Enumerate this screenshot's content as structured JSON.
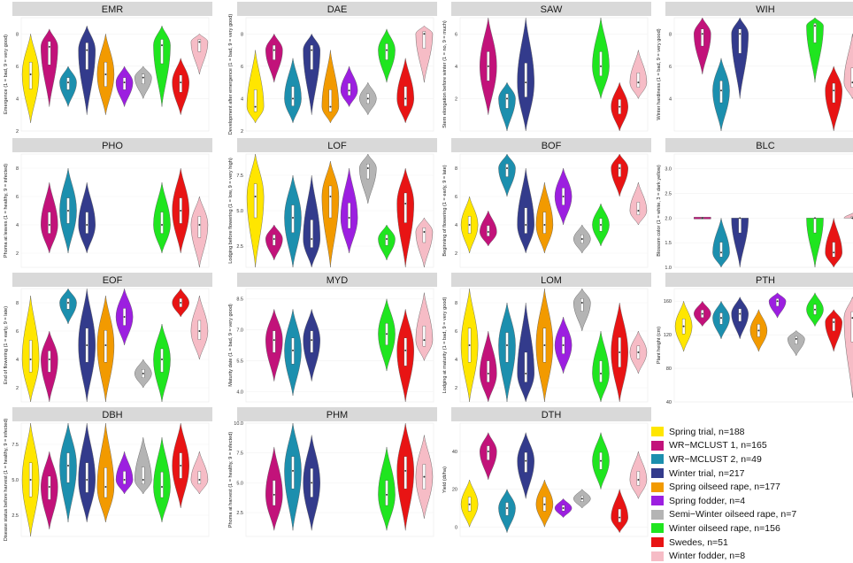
{
  "chart_data": {
    "type": "violin",
    "groups": [
      {
        "name": "Spring trial, n=188",
        "color": "#FFE600"
      },
      {
        "name": "WR−MCLUST 1, n=165",
        "color": "#C2127A"
      },
      {
        "name": "WR−MCLUST 2, n=49",
        "color": "#1C8FAE"
      },
      {
        "name": "Winter trial, n=217",
        "color": "#333B8C"
      },
      {
        "name": "Spring oilseed rape, n=177",
        "color": "#F29A00"
      },
      {
        "name": "Spring fodder, n=4",
        "color": "#9C1FE0"
      },
      {
        "name": "Semi−Winter oilseed rape, n=7",
        "color": "#B4B4B4"
      },
      {
        "name": "Winter oilseed rape, n=156",
        "color": "#1FE51F"
      },
      {
        "name": "Swedes, n=51",
        "color": "#E81414"
      },
      {
        "name": "Winter fodder, n=8",
        "color": "#F6BCC6"
      }
    ],
    "panels": [
      {
        "title": "EMR",
        "ylabel": "Emergence (1 = bad, 9 = very good)",
        "yticks": [
          "2",
          "4",
          "6",
          "8"
        ],
        "ylim": [
          2,
          9
        ],
        "violins": [
          [
            2.5,
            8,
            5.5,
            5.5
          ],
          [
            3.5,
            8.3,
            7.2,
            7.2
          ],
          [
            3.5,
            6,
            5,
            5
          ],
          [
            3,
            8.5,
            7,
            7
          ],
          [
            3,
            8,
            5.5,
            5.5
          ],
          [
            3.5,
            6,
            5,
            5
          ],
          [
            4,
            6,
            5.3,
            5.3
          ],
          [
            3.5,
            8.5,
            7.3,
            7.3
          ],
          [
            3,
            6.5,
            5,
            5
          ],
          [
            5.5,
            8,
            7.5,
            7.5
          ]
        ]
      },
      {
        "title": "DAE",
        "ylabel": "Development after emergence (1 = bad, 9 = very good)",
        "yticks": [
          "2",
          "4",
          "6",
          "8"
        ],
        "ylim": [
          2,
          9
        ],
        "violins": [
          [
            2.5,
            7,
            3.5,
            3.5
          ],
          [
            5,
            8,
            7,
            7
          ],
          [
            2.5,
            6.5,
            4,
            4
          ],
          [
            3,
            8,
            7,
            7
          ],
          [
            2.5,
            7,
            3.5,
            3.5
          ],
          [
            3.5,
            6,
            4.5,
            4.5
          ],
          [
            3,
            5,
            4,
            4
          ],
          [
            5,
            8.3,
            7,
            7
          ],
          [
            2.5,
            6.5,
            4,
            4
          ],
          [
            5,
            8.5,
            8,
            8
          ]
        ]
      },
      {
        "title": "SAW",
        "ylabel": "Stem elongation before winter (1 = no, 9 = much)",
        "yticks": [
          "2",
          "4",
          "6"
        ],
        "ylim": [
          0,
          7
        ],
        "violins": null,
        "violins_sel": [
          [
            1,
            null
          ],
          [
            2,
            [
              1,
              7,
              4,
              4
            ]
          ],
          [
            3,
            [
              0,
              3,
              2,
              2
            ]
          ],
          [
            4,
            [
              0,
              7,
              3,
              3
            ]
          ],
          [
            8,
            [
              2,
              7,
              4,
              4
            ]
          ],
          [
            9,
            [
              0,
              3,
              1.5,
              1.5
            ]
          ],
          [
            10,
            [
              2,
              5,
              3,
              3
            ]
          ]
        ]
      },
      {
        "title": "WIH",
        "ylabel": "Winter hardiness (1 = bad, 9 = very good)",
        "yticks": [
          "4",
          "6",
          "8"
        ],
        "ylim": [
          2,
          9
        ],
        "violins_sel": [
          [
            2,
            [
              5.5,
              9,
              8,
              8
            ]
          ],
          [
            3,
            [
              2,
              6.5,
              4.5,
              4.5
            ]
          ],
          [
            4,
            [
              4,
              9,
              8,
              8
            ]
          ],
          [
            8,
            [
              5,
              9,
              8.5,
              8.5
            ]
          ],
          [
            9,
            [
              2,
              6,
              4.5,
              4.5
            ]
          ],
          [
            10,
            [
              4,
              8,
              5,
              5
            ]
          ]
        ]
      },
      {
        "title": "PHO",
        "ylabel": "Phoma at leaves (1 = healthy, 9 = infected)",
        "yticks": [
          "2",
          "4",
          "6",
          "8"
        ],
        "ylim": [
          1,
          9
        ],
        "violins_sel": [
          [
            2,
            [
              2,
              7,
              4,
              4
            ]
          ],
          [
            3,
            [
              2,
              8,
              5,
              5
            ]
          ],
          [
            4,
            [
              2,
              7,
              4,
              4
            ]
          ],
          [
            8,
            [
              2,
              7,
              4,
              4
            ]
          ],
          [
            9,
            [
              2,
              8,
              5,
              5
            ]
          ],
          [
            10,
            [
              1,
              6,
              4,
              4
            ]
          ]
        ]
      },
      {
        "title": "LOF",
        "ylabel": "Lodging before flowering (1 = low, 9 = very high)",
        "yticks": [
          "2.5",
          "5.0",
          "7.5"
        ],
        "ylim": [
          1,
          9
        ],
        "violins": [
          [
            1,
            9,
            6,
            6
          ],
          [
            1.5,
            4,
            3,
            3
          ],
          [
            1,
            7.5,
            4.5,
            4.5
          ],
          [
            1,
            7.5,
            3,
            3
          ],
          [
            1,
            8.5,
            6,
            6
          ],
          [
            2,
            8,
            4.5,
            4.5
          ],
          [
            5.5,
            9,
            8,
            8
          ],
          [
            1.5,
            4,
            3,
            3
          ],
          [
            1,
            8,
            5.5,
            5.5
          ],
          [
            1,
            4.5,
            3.5,
            3.5
          ]
        ]
      },
      {
        "title": "BOF",
        "ylabel": "Beginning of flowering (1 = early, 9 = late)",
        "yticks": [
          "2",
          "4",
          "6",
          "8"
        ],
        "ylim": [
          1,
          9
        ],
        "violins": [
          [
            2,
            6,
            4,
            4
          ],
          [
            2.5,
            5,
            3.5,
            3.5
          ],
          [
            6,
            9,
            8,
            8
          ],
          [
            2,
            8,
            4,
            4
          ],
          [
            2,
            7,
            4,
            4
          ],
          [
            4,
            8,
            6,
            6
          ],
          [
            2,
            4,
            3,
            3
          ],
          [
            2.5,
            5.5,
            4,
            4
          ],
          [
            6,
            9,
            8,
            8
          ],
          [
            4,
            7,
            5,
            5
          ]
        ]
      },
      {
        "title": "BLC",
        "ylabel": "Blossom color (1 = white, 3 = dark yellow)",
        "yticks": [
          "1.0",
          "1.5",
          "2.0",
          "2.5",
          "3.0"
        ],
        "ylim": [
          1,
          3.3
        ],
        "violins_sel": [
          [
            2,
            [
              2,
              2,
              2,
              2
            ]
          ],
          [
            3,
            [
              1,
              2,
              1.3,
              1.3
            ]
          ],
          [
            4,
            [
              1,
              2,
              2,
              2
            ]
          ],
          [
            8,
            [
              1,
              2,
              2,
              2
            ]
          ],
          [
            9,
            [
              1,
              2,
              1.3,
              1.3
            ]
          ],
          [
            10,
            [
              2,
              2.1,
              2,
              2
            ]
          ]
        ]
      },
      {
        "title": "EOF",
        "ylabel": "End of flowering (1 = early, 9 = late)",
        "yticks": [
          "2",
          "4",
          "6",
          "8"
        ],
        "ylim": [
          1,
          9
        ],
        "violins": [
          [
            1,
            8.5,
            4,
            4
          ],
          [
            1,
            6,
            4,
            4
          ],
          [
            6.5,
            9,
            8,
            8
          ],
          [
            1,
            9,
            5,
            5
          ],
          [
            1,
            8.5,
            5,
            5
          ],
          [
            5,
            9,
            7,
            7
          ],
          [
            2,
            4,
            3,
            3
          ],
          [
            1,
            6.5,
            4,
            4
          ],
          [
            7,
            9,
            8,
            8
          ],
          [
            4,
            8.5,
            6,
            6
          ]
        ]
      },
      {
        "title": "MYD",
        "ylabel": "Maturity date (1 = bad, 9 = very good)",
        "yticks": [
          "4.0",
          "5.5",
          "7.0",
          "8.5"
        ],
        "ylim": [
          3.5,
          9
        ],
        "violins_sel": [
          [
            2,
            [
              4.5,
              8,
              6.5,
              6.5
            ]
          ],
          [
            3,
            [
              3.8,
              8,
              6,
              6
            ]
          ],
          [
            4,
            [
              4.5,
              8,
              6.5,
              6.5
            ]
          ],
          [
            8,
            [
              5,
              8.5,
              6.8,
              6.8
            ]
          ],
          [
            9,
            [
              3.5,
              8,
              6,
              6
            ]
          ],
          [
            10,
            [
              5.5,
              8.8,
              6.5,
              6.5
            ]
          ]
        ]
      },
      {
        "title": "LOM",
        "ylabel": "Lodging at maturity (1 = bad, 9 = very good)",
        "yticks": [
          "2",
          "4",
          "6",
          "8"
        ],
        "ylim": [
          1,
          9
        ],
        "violins": [
          [
            1,
            9,
            5,
            5
          ],
          [
            1,
            6,
            3,
            3
          ],
          [
            1,
            8,
            5,
            5
          ],
          [
            1,
            8,
            3,
            3
          ],
          [
            1,
            9,
            5,
            5
          ],
          [
            3,
            7,
            5,
            5
          ],
          [
            6,
            9,
            8,
            8
          ],
          [
            1,
            6,
            3,
            3
          ],
          [
            1,
            8,
            4.5,
            4.5
          ],
          [
            3,
            6,
            4.5,
            4.5
          ]
        ]
      },
      {
        "title": "PTH",
        "ylabel": "Plant height (cm)",
        "yticks": [
          "40",
          "80",
          "120",
          "160"
        ],
        "ylim": [
          40,
          175
        ],
        "violins": [
          [
            100,
            160,
            130,
            130
          ],
          [
            130,
            160,
            145,
            145
          ],
          [
            115,
            160,
            140,
            140
          ],
          [
            115,
            165,
            145,
            145
          ],
          [
            100,
            150,
            125,
            125
          ],
          [
            140,
            170,
            160,
            160
          ],
          [
            95,
            125,
            115,
            115
          ],
          [
            130,
            170,
            150,
            150
          ],
          [
            100,
            150,
            135,
            135
          ],
          [
            45,
            165,
            140,
            140
          ]
        ]
      },
      {
        "title": "DBH",
        "ylabel": "Disease status before harvest (1 = healthy, 9 = infected)",
        "yticks": [
          "2.5",
          "5.0",
          "7.5"
        ],
        "ylim": [
          1,
          9
        ],
        "violins": [
          [
            1,
            9,
            5,
            5
          ],
          [
            1.5,
            7,
            4.5,
            4.5
          ],
          [
            2,
            9,
            6,
            6
          ],
          [
            2,
            9,
            5,
            5
          ],
          [
            2,
            9,
            4.5,
            4.5
          ],
          [
            4,
            7,
            5,
            5
          ],
          [
            4,
            8,
            5,
            5
          ],
          [
            2,
            8,
            4.5,
            4.5
          ],
          [
            3,
            9,
            6,
            6
          ],
          [
            4,
            7,
            5,
            5
          ]
        ]
      },
      {
        "title": "PHM",
        "ylabel": "Phoma at harvest (1 = healthy, 9 = infected)",
        "yticks": [
          "2.5",
          "5.0",
          "7.5",
          "10.0"
        ],
        "ylim": [
          0.5,
          10
        ],
        "violins_sel": [
          [
            2,
            [
              1,
              8,
              4,
              4
            ]
          ],
          [
            3,
            [
              1,
              10,
              6,
              6
            ]
          ],
          [
            4,
            [
              1,
              9,
              5,
              5
            ]
          ],
          [
            8,
            [
              1,
              8,
              4,
              4
            ]
          ],
          [
            9,
            [
              1,
              10,
              6,
              6
            ]
          ],
          [
            10,
            [
              2,
              9,
              5.5,
              5.5
            ]
          ]
        ]
      },
      {
        "title": "DTH",
        "ylabel": "Yield (dt/ha)",
        "yticks": [
          "0",
          "20",
          "40"
        ],
        "ylim": [
          -5,
          55
        ],
        "violins": [
          [
            0,
            25,
            12,
            12
          ],
          [
            25,
            50,
            40,
            40
          ],
          [
            -3,
            20,
            10,
            10
          ],
          [
            15,
            50,
            35,
            35
          ],
          [
            0,
            25,
            12,
            12
          ],
          [
            5,
            15,
            10,
            10
          ],
          [
            10,
            20,
            15,
            15
          ],
          [
            20,
            50,
            35,
            35
          ],
          [
            -3,
            20,
            5,
            5
          ],
          [
            15,
            40,
            25,
            25
          ]
        ]
      }
    ]
  }
}
